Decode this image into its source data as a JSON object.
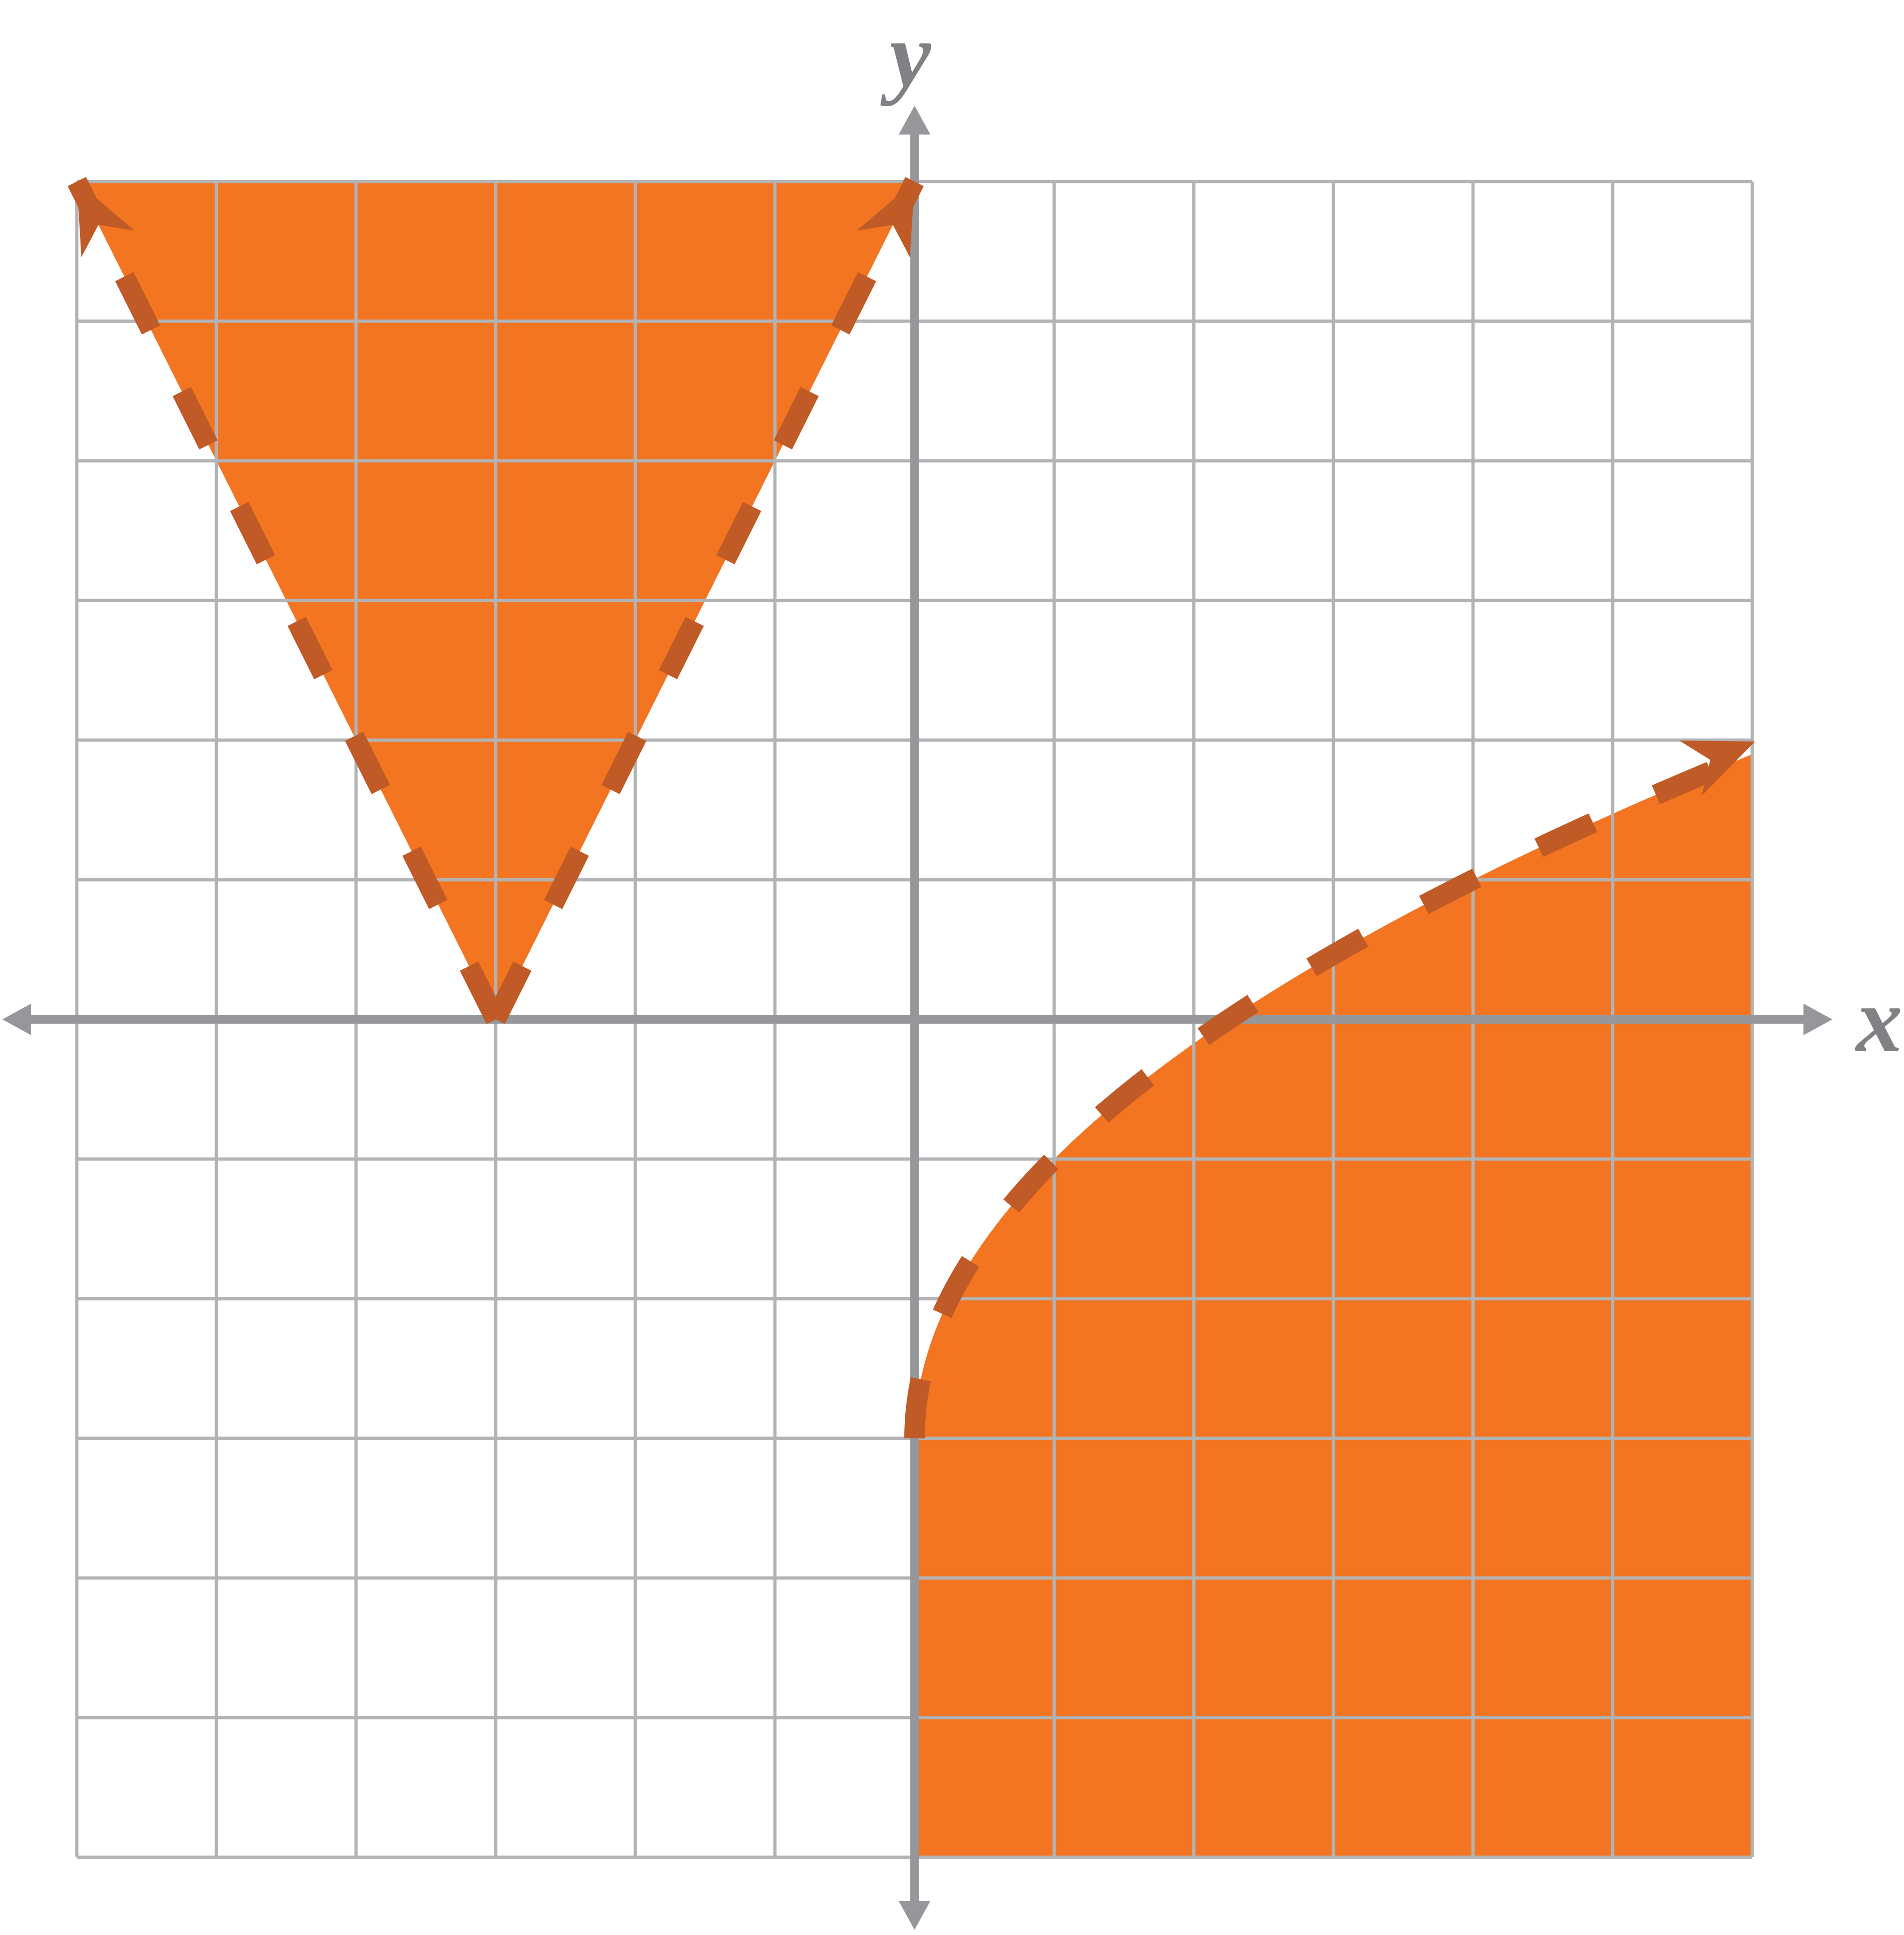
{
  "chart_data": {
    "type": "area",
    "title": "",
    "axes": {
      "xlabel": "x",
      "ylabel": "y",
      "xlim": [
        -6,
        6
      ],
      "ylim": [
        -6,
        6
      ],
      "grid": true,
      "grid_step": 1,
      "tick_labels_shown": false
    },
    "regions": [
      {
        "name": "absolute-value-region",
        "boundary_equation": "y = 2|x + 3|",
        "line_style": "dashed",
        "shading": "above-boundary",
        "vertex": [
          -3,
          0
        ],
        "slope_magnitude": 2,
        "fill_vertices": [
          [
            -6,
            6
          ],
          [
            0,
            6
          ],
          [
            -3,
            0
          ]
        ],
        "arrow_tips": [
          [
            -6,
            6
          ],
          [
            0,
            6
          ]
        ],
        "points_on_boundary": [
          [
            -6,
            6
          ],
          [
            -4.5,
            3
          ],
          [
            -3,
            0
          ],
          [
            -1.5,
            3
          ],
          [
            0,
            6
          ]
        ]
      },
      {
        "name": "square-root-region",
        "boundary_equation": "y = 2√x − 3",
        "line_style": "dashed",
        "shading": "below-boundary",
        "sqrt": {
          "a": 2,
          "k": -3
        },
        "start_point": [
          0,
          -3
        ],
        "x_intercept": [
          2.25,
          0
        ],
        "points_on_boundary": [
          [
            0,
            -3
          ],
          [
            1,
            -1
          ],
          [
            2.25,
            0
          ],
          [
            4,
            1
          ],
          [
            6,
            1.9
          ]
        ],
        "curve_draw_domain": [
          0,
          5.92
        ],
        "arrow_tip": [
          6.02,
          1.99
        ],
        "fill_bottom_corners": [
          [
            6,
            -6
          ],
          [
            0,
            -6
          ]
        ]
      }
    ],
    "colors": {
      "region_fill": "#f37421",
      "boundary_dash": "#c05a26",
      "axis": "#95979a",
      "grid": "#b1b3b5",
      "axis_label": "#7f8184",
      "background": "#ffffff"
    }
  }
}
